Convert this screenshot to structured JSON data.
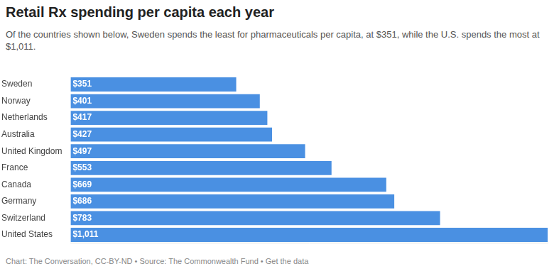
{
  "chart_data": {
    "type": "bar",
    "title": "Retail Rx spending per capita each year",
    "subtitle": "Of the countries shown below, Sweden spends the least for pharmaceuticals per capita, at $351, while the U.S. spends the most at $1,011.",
    "footer": "Chart: The Conversation, CC-BY-ND • Source: The Commonwealth Fund • Get the data",
    "categories": [
      "Sweden",
      "Norway",
      "Netherlands",
      "Australia",
      "United Kingdom",
      "France",
      "Canada",
      "Germany",
      "Switzerland",
      "United States"
    ],
    "values": [
      351,
      401,
      417,
      427,
      497,
      553,
      669,
      686,
      783,
      1011
    ],
    "value_labels": [
      "$351",
      "$401",
      "$417",
      "$427",
      "$497",
      "$553",
      "$669",
      "$686",
      "$783",
      "$1,011"
    ],
    "color": "#4a90e2",
    "orientation": "horizontal",
    "xlim": [
      0,
      1011
    ],
    "grid": false,
    "data_labels": true,
    "tick_labels": "y"
  }
}
